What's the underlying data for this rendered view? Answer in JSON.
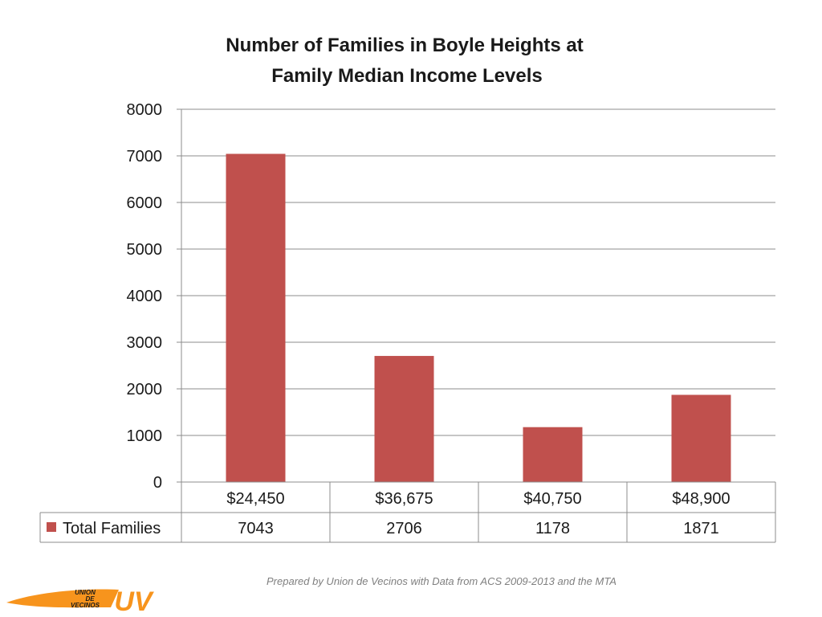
{
  "chart_data": {
    "type": "bar",
    "title": [
      "Number of Families in Boyle Heights at",
      "Family Median Income Levels"
    ],
    "categories": [
      "$24,450",
      "$36,675",
      "$40,750",
      "$48,900"
    ],
    "series": [
      {
        "name": "Total Families",
        "values": [
          7043,
          2706,
          1178,
          1871
        ],
        "color": "#c0504d"
      }
    ],
    "value_labels": [
      "7043",
      "2706",
      "1178",
      "1871"
    ],
    "ylim": [
      0,
      8000
    ],
    "yticks": [
      0,
      1000,
      2000,
      3000,
      4000,
      5000,
      6000,
      7000,
      8000
    ],
    "grid": true,
    "legend": "data-table"
  },
  "footer": {
    "note": "Prepared by Union de Vecinos with Data from ACS 2009-2013 and the MTA"
  },
  "logo": {
    "lines": [
      "UNION",
      "DE",
      "VECINOS"
    ],
    "mark": "UV",
    "color": "#f7941d"
  }
}
